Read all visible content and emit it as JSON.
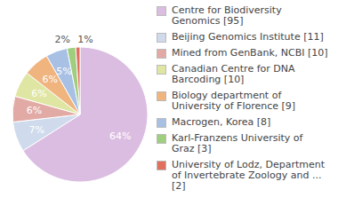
{
  "chart_data": {
    "type": "pie",
    "categories": [
      "Centre for Biodiversity Genomics [95]",
      "Beijing Genomics Institute [11]",
      "Mined from GenBank, NCBI [10]",
      "Canadian Centre for DNA Barcoding [10]",
      "Biology department of University of Florence [9]",
      "Macrogen, Korea [8]",
      "Karl-Franzens University of Graz [3]",
      "University of Lodz, Department of Invertebrate Zoology and ... [2]"
    ],
    "values": [
      64,
      7,
      6,
      6,
      6,
      5,
      2,
      1
    ],
    "value_labels": [
      "64%",
      "7%",
      "6%",
      "6%",
      "6%",
      "5%",
      "2%",
      "1%"
    ],
    "colors": [
      "#dcbde2",
      "#cfdbec",
      "#e2aaa5",
      "#dfe6a3",
      "#f0b47e",
      "#a7c0e4",
      "#9fce7e",
      "#e06f5e"
    ],
    "data_labels": true,
    "legend": "right"
  }
}
